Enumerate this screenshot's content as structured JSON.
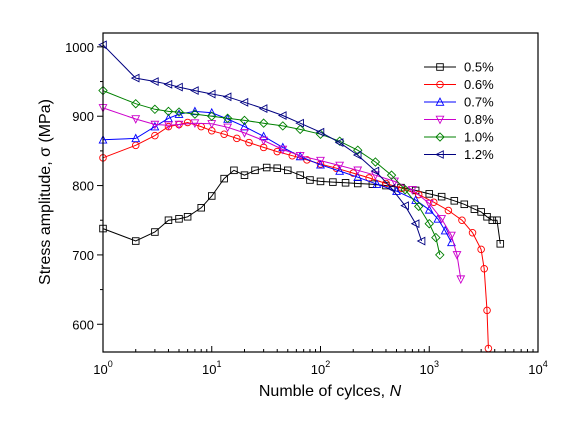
{
  "chart_data": {
    "type": "line",
    "xlabel": "Numble of cylces, ",
    "xlabel_var": "N",
    "ylabel": "Stress amplitude, σ (MPa)",
    "x_scale": "log",
    "xlim": [
      1,
      10000
    ],
    "ylim": [
      560,
      1020
    ],
    "x_ticks": [
      {
        "value": 1,
        "base": "10",
        "exp": "0"
      },
      {
        "value": 10,
        "base": "10",
        "exp": "1"
      },
      {
        "value": 100,
        "base": "10",
        "exp": "2"
      },
      {
        "value": 1000,
        "base": "10",
        "exp": "3"
      },
      {
        "value": 10000,
        "base": "10",
        "exp": "4"
      }
    ],
    "y_ticks": [
      "600",
      "700",
      "800",
      "900",
      "1000"
    ],
    "grid": false,
    "legend_position": "top-right",
    "series": [
      {
        "name": "0.5%",
        "color": "#000000",
        "marker": "square",
        "points": [
          [
            1,
            738
          ],
          [
            2,
            720
          ],
          [
            3,
            733
          ],
          [
            4,
            750
          ],
          [
            5,
            752
          ],
          [
            6,
            755
          ],
          [
            8,
            768
          ],
          [
            10,
            785
          ],
          [
            13,
            810
          ],
          [
            16,
            822
          ],
          [
            20,
            815
          ],
          [
            25,
            822
          ],
          [
            32,
            826
          ],
          [
            40,
            825
          ],
          [
            50,
            822
          ],
          [
            65,
            815
          ],
          [
            80,
            808
          ],
          [
            100,
            806
          ],
          [
            130,
            805
          ],
          [
            170,
            804
          ],
          [
            220,
            803
          ],
          [
            300,
            802
          ],
          [
            400,
            800
          ],
          [
            550,
            797
          ],
          [
            750,
            793
          ],
          [
            1000,
            788
          ],
          [
            1300,
            784
          ],
          [
            1700,
            778
          ],
          [
            2100,
            773
          ],
          [
            2600,
            766
          ],
          [
            3000,
            762
          ],
          [
            3400,
            755
          ],
          [
            3800,
            750
          ],
          [
            4200,
            750
          ],
          [
            4500,
            716
          ]
        ]
      },
      {
        "name": "0.6%",
        "color": "#ff0000",
        "marker": "circle",
        "points": [
          [
            1,
            840
          ],
          [
            2,
            858
          ],
          [
            3,
            872
          ],
          [
            4,
            885
          ],
          [
            5,
            888
          ],
          [
            6,
            891
          ],
          [
            8,
            885
          ],
          [
            10,
            879
          ],
          [
            13,
            874
          ],
          [
            17,
            868
          ],
          [
            22,
            862
          ],
          [
            30,
            855
          ],
          [
            40,
            849
          ],
          [
            55,
            843
          ],
          [
            75,
            837
          ],
          [
            100,
            831
          ],
          [
            140,
            825
          ],
          [
            200,
            818
          ],
          [
            280,
            811
          ],
          [
            400,
            803
          ],
          [
            560,
            796
          ],
          [
            800,
            787
          ],
          [
            1100,
            776
          ],
          [
            1500,
            764
          ],
          [
            2000,
            750
          ],
          [
            2500,
            732
          ],
          [
            3000,
            708
          ],
          [
            3200,
            680
          ],
          [
            3400,
            620
          ],
          [
            3500,
            565
          ]
        ]
      },
      {
        "name": "0.7%",
        "color": "#0000ff",
        "marker": "triangle-up",
        "points": [
          [
            1,
            866
          ],
          [
            2,
            868
          ],
          [
            3,
            885
          ],
          [
            4,
            897
          ],
          [
            5,
            903
          ],
          [
            7,
            907
          ],
          [
            10,
            905
          ],
          [
            14,
            896
          ],
          [
            20,
            885
          ],
          [
            30,
            871
          ],
          [
            45,
            855
          ],
          [
            65,
            842
          ],
          [
            100,
            830
          ],
          [
            150,
            821
          ],
          [
            220,
            812
          ],
          [
            330,
            802
          ],
          [
            500,
            792
          ],
          [
            750,
            779
          ],
          [
            1000,
            765
          ],
          [
            1200,
            752
          ],
          [
            1400,
            735
          ],
          [
            1600,
            718
          ]
        ]
      },
      {
        "name": "0.8%",
        "color": "#cc00cc",
        "marker": "triangle-down",
        "points": [
          [
            1,
            912
          ],
          [
            2,
            896
          ],
          [
            3,
            888
          ],
          [
            4,
            887
          ],
          [
            5,
            888
          ],
          [
            7,
            890
          ],
          [
            10,
            889
          ],
          [
            14,
            884
          ],
          [
            20,
            876
          ],
          [
            30,
            865
          ],
          [
            45,
            852
          ],
          [
            65,
            843
          ],
          [
            100,
            836
          ],
          [
            150,
            829
          ],
          [
            220,
            822
          ],
          [
            320,
            815
          ],
          [
            480,
            806
          ],
          [
            700,
            794
          ],
          [
            1000,
            774
          ],
          [
            1300,
            752
          ],
          [
            1600,
            728
          ],
          [
            1800,
            700
          ],
          [
            1950,
            665
          ]
        ]
      },
      {
        "name": "1.0%",
        "color": "#008000",
        "marker": "diamond",
        "points": [
          [
            1,
            937
          ],
          [
            2,
            918
          ],
          [
            3,
            910
          ],
          [
            4,
            907
          ],
          [
            5,
            906
          ],
          [
            7,
            903
          ],
          [
            10,
            900
          ],
          [
            14,
            897
          ],
          [
            20,
            894
          ],
          [
            30,
            890
          ],
          [
            45,
            886
          ],
          [
            65,
            881
          ],
          [
            100,
            874
          ],
          [
            150,
            864
          ],
          [
            220,
            851
          ],
          [
            320,
            834
          ],
          [
            450,
            815
          ],
          [
            600,
            794
          ],
          [
            800,
            770
          ],
          [
            1000,
            745
          ],
          [
            1150,
            725
          ],
          [
            1250,
            700
          ]
        ]
      },
      {
        "name": "1.2%",
        "color": "#000080",
        "marker": "triangle-left",
        "points": [
          [
            1,
            1003
          ],
          [
            2,
            955
          ],
          [
            3,
            950
          ],
          [
            4,
            946
          ],
          [
            5,
            942
          ],
          [
            7,
            937
          ],
          [
            10,
            932
          ],
          [
            14,
            928
          ],
          [
            20,
            920
          ],
          [
            30,
            911
          ],
          [
            45,
            901
          ],
          [
            65,
            890
          ],
          [
            100,
            877
          ],
          [
            150,
            862
          ],
          [
            220,
            844
          ],
          [
            320,
            821
          ],
          [
            450,
            796
          ],
          [
            600,
            771
          ],
          [
            750,
            745
          ],
          [
            850,
            720
          ]
        ]
      }
    ]
  }
}
